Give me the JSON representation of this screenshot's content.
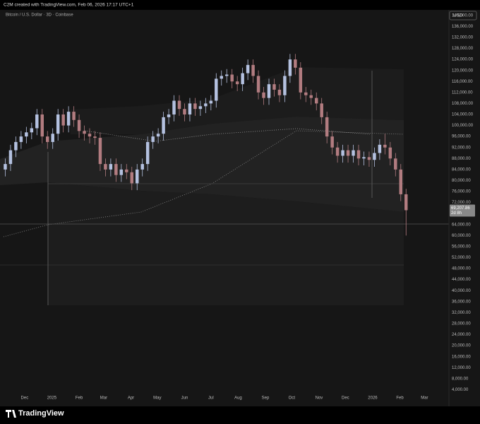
{
  "header": {
    "credit": "C2M created with TradingView.com, Feb 06, 2026 17:17 UTC+1",
    "symbol": "Bitcoin / U.S. Dollar · 3D · Coinbase"
  },
  "chart_data": {
    "type": "candlestick",
    "currency_label": "USD",
    "up_color": "#b4c1e0",
    "down_color": "#b27c80",
    "open": [
      84000,
      86000,
      91000,
      94000,
      96000,
      97500,
      99000,
      104000,
      96000,
      94000,
      97000,
      104000,
      100000,
      105000,
      102000,
      98000,
      97000,
      96000,
      95500,
      86000,
      84000,
      86000,
      82000,
      84000,
      83000,
      79000,
      84000,
      86000,
      94000,
      96000,
      97000,
      103000,
      104000,
      109000,
      106000,
      104000,
      108000,
      106000,
      107000,
      108000,
      109000,
      117000,
      118000,
      118500,
      116000,
      115000,
      119000,
      122000,
      118000,
      112000,
      110000,
      115000,
      113000,
      111000,
      118000,
      124000,
      121000,
      112000,
      111000,
      110000,
      108000,
      103000,
      96000,
      92000,
      89000,
      91000,
      89000,
      91000,
      88000,
      88500,
      87500,
      90000,
      93000,
      92000,
      88000,
      84000,
      75000
    ],
    "high": [
      88000,
      93000,
      96000,
      98000,
      99500,
      101000,
      106000,
      106000,
      98000,
      99000,
      106000,
      106000,
      107000,
      107000,
      104000,
      100000,
      99000,
      98000,
      97500,
      88000,
      88000,
      88000,
      86000,
      86000,
      85000,
      86000,
      88000,
      96000,
      98000,
      99000,
      105000,
      106000,
      111000,
      111000,
      108000,
      110000,
      110000,
      109000,
      110000,
      111000,
      119000,
      120000,
      120500,
      120500,
      118000,
      121000,
      124000,
      124000,
      120000,
      114000,
      117000,
      117000,
      115000,
      120000,
      126000,
      126000,
      123000,
      114000,
      113000,
      112000,
      110000,
      105000,
      98000,
      94000,
      93000,
      93000,
      93000,
      93000,
      90500,
      90500,
      92000,
      95000,
      97000,
      94000,
      90000,
      86000,
      77000
    ],
    "low": [
      81500,
      83500,
      88500,
      91500,
      93500,
      95000,
      96500,
      93500,
      91500,
      91500,
      94500,
      97500,
      97500,
      99500,
      95500,
      94500,
      93500,
      93000,
      83500,
      81500,
      81500,
      79500,
      79500,
      80500,
      76500,
      76500,
      81500,
      83500,
      91500,
      93500,
      94500,
      100500,
      101500,
      103500,
      101500,
      101500,
      103500,
      103500,
      104500,
      105500,
      106500,
      114500,
      115500,
      113500,
      112500,
      112500,
      116500,
      115500,
      109500,
      107500,
      107500,
      110500,
      108500,
      108500,
      115500,
      118500,
      109500,
      108500,
      107500,
      105500,
      100500,
      93500,
      89500,
      86500,
      86500,
      86500,
      86500,
      85500,
      85500,
      85000,
      85000,
      87500,
      89500,
      85500,
      81500,
      72500,
      60000
    ],
    "close": [
      86000,
      91000,
      94000,
      96000,
      97500,
      99000,
      104000,
      96000,
      94000,
      97000,
      104000,
      100000,
      105000,
      102000,
      98000,
      97000,
      96000,
      95500,
      86000,
      84000,
      86000,
      82000,
      84000,
      83000,
      79000,
      84000,
      86000,
      94000,
      96000,
      97000,
      103000,
      104000,
      109000,
      106000,
      104000,
      108000,
      106000,
      107000,
      108000,
      109000,
      117000,
      118000,
      118500,
      116000,
      115000,
      119000,
      122000,
      118000,
      112000,
      110000,
      115000,
      113000,
      111000,
      118000,
      124000,
      121000,
      112000,
      111000,
      110000,
      108000,
      103000,
      96000,
      92000,
      89000,
      91000,
      89000,
      91000,
      88000,
      88500,
      87500,
      90000,
      93000,
      92000,
      88000,
      84000,
      75000,
      69207.86
    ],
    "last_price_label": "69,207.86",
    "countdown_label": "2d 8h",
    "xlim": [
      -1,
      84
    ],
    "ylim": [
      0,
      142000
    ],
    "grid": false,
    "xticks": [
      {
        "value": 3.67,
        "label": "Dec"
      },
      {
        "value": 8.83,
        "label": "2025"
      },
      {
        "value": 14,
        "label": "Feb"
      },
      {
        "value": 18.67,
        "label": "Mar"
      },
      {
        "value": 23.83,
        "label": "Apr"
      },
      {
        "value": 28.83,
        "label": "May"
      },
      {
        "value": 34,
        "label": "Jun"
      },
      {
        "value": 39,
        "label": "Jul"
      },
      {
        "value": 44.17,
        "label": "Aug"
      },
      {
        "value": 49.33,
        "label": "Sep"
      },
      {
        "value": 54.33,
        "label": "Oct"
      },
      {
        "value": 59.5,
        "label": "Nov"
      },
      {
        "value": 64.5,
        "label": "Dec"
      },
      {
        "value": 69.67,
        "label": "2026"
      },
      {
        "value": 74.83,
        "label": "Feb"
      },
      {
        "value": 79.5,
        "label": "Mar"
      }
    ],
    "yticks": [
      {
        "value": 4000,
        "label": "4,000.00"
      },
      {
        "value": 8000,
        "label": "8,000.00"
      },
      {
        "value": 12000,
        "label": "12,000.00"
      },
      {
        "value": 16000,
        "label": "16,000.00"
      },
      {
        "value": 20000,
        "label": "20,000.00"
      },
      {
        "value": 24000,
        "label": "24,000.00"
      },
      {
        "value": 28000,
        "label": "28,000.00"
      },
      {
        "value": 32000,
        "label": "32,000.00"
      },
      {
        "value": 36000,
        "label": "36,000.00"
      },
      {
        "value": 40000,
        "label": "40,000.00"
      },
      {
        "value": 44000,
        "label": "44,000.00"
      },
      {
        "value": 48000,
        "label": "48,000.00"
      },
      {
        "value": 52000,
        "label": "52,000.00"
      },
      {
        "value": 56000,
        "label": "56,000.00"
      },
      {
        "value": 60000,
        "label": "60,000.00"
      },
      {
        "value": 64000,
        "label": "64,000.00"
      },
      {
        "value": 68000,
        "label": "68,000.00"
      },
      {
        "value": 72000,
        "label": "72,000.00"
      },
      {
        "value": 76000,
        "label": "76,000.00"
      },
      {
        "value": 80000,
        "label": "80,000.00"
      },
      {
        "value": 84000,
        "label": "84,000.00"
      },
      {
        "value": 88000,
        "label": "88,000.00"
      },
      {
        "value": 92000,
        "label": "92,000.00"
      },
      {
        "value": 96000,
        "label": "96,000.00"
      },
      {
        "value": 100000,
        "label": "100,000.00"
      },
      {
        "value": 104000,
        "label": "104,000.00"
      },
      {
        "value": 108000,
        "label": "108,000.00"
      },
      {
        "value": 112000,
        "label": "112,000.00"
      },
      {
        "value": 116000,
        "label": "116,000.00"
      },
      {
        "value": 120000,
        "label": "120,000.00"
      },
      {
        "value": 124000,
        "label": "124,000.00"
      },
      {
        "value": 128000,
        "label": "128,000.00"
      },
      {
        "value": 132000,
        "label": "132,000.00"
      },
      {
        "value": 136000,
        "label": "136,000.00"
      },
      {
        "value": 140000,
        "label": "140,000.00"
      }
    ]
  },
  "footer": {
    "brand": "TradingView"
  }
}
